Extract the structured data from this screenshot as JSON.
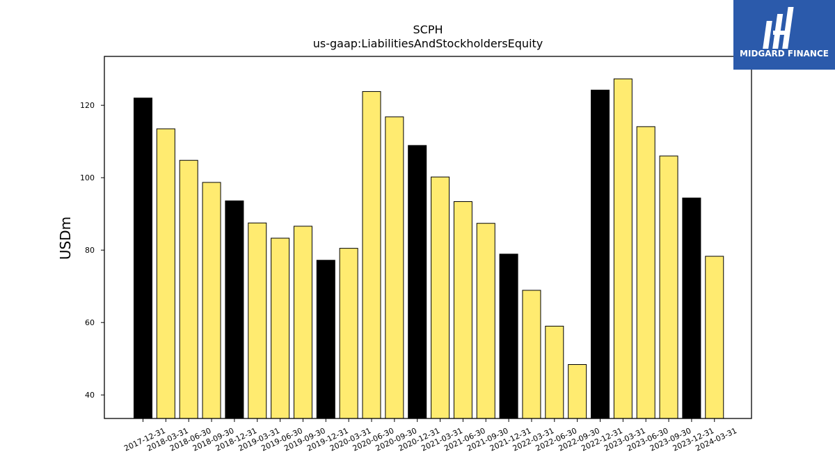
{
  "logo": {
    "text": "MIDGARD FINANCE",
    "bg_color": "#2b5aab"
  },
  "chart_data": {
    "type": "bar",
    "title": "SCPH",
    "subtitle": "us-gaap:LiabilitiesAndStockholdersEquity",
    "xlabel": "",
    "ylabel": "USDm",
    "ylim": [
      33.5,
      133.5
    ],
    "yticks": [
      40,
      60,
      80,
      100,
      120
    ],
    "grid": false,
    "colors": {
      "annual": "#000000",
      "quarterly": "#ffeb70"
    },
    "categories": [
      "2017-12-31",
      "2018-03-31",
      "2018-06-30",
      "2018-09-30",
      "2018-12-31",
      "2019-03-31",
      "2019-06-30",
      "2019-09-30",
      "2019-12-31",
      "2020-03-31",
      "2020-06-30",
      "2020-09-30",
      "2020-12-31",
      "2021-03-31",
      "2021-06-30",
      "2021-09-30",
      "2021-12-31",
      "2022-03-31",
      "2022-06-30",
      "2022-09-30",
      "2022-12-31",
      "2023-03-31",
      "2023-06-30",
      "2023-09-30",
      "2023-12-31",
      "2024-03-31"
    ],
    "values": [
      122.0,
      113.5,
      104.8,
      98.7,
      93.6,
      87.5,
      83.3,
      86.6,
      77.2,
      80.5,
      123.8,
      116.8,
      108.9,
      100.2,
      93.4,
      87.4,
      78.9,
      68.9,
      59.0,
      48.4,
      124.2,
      127.3,
      114.1,
      106.0,
      94.4,
      78.3
    ],
    "annual": [
      true,
      false,
      false,
      false,
      true,
      false,
      false,
      false,
      true,
      false,
      false,
      false,
      true,
      false,
      false,
      false,
      true,
      false,
      false,
      false,
      true,
      false,
      false,
      false,
      true,
      false
    ]
  }
}
